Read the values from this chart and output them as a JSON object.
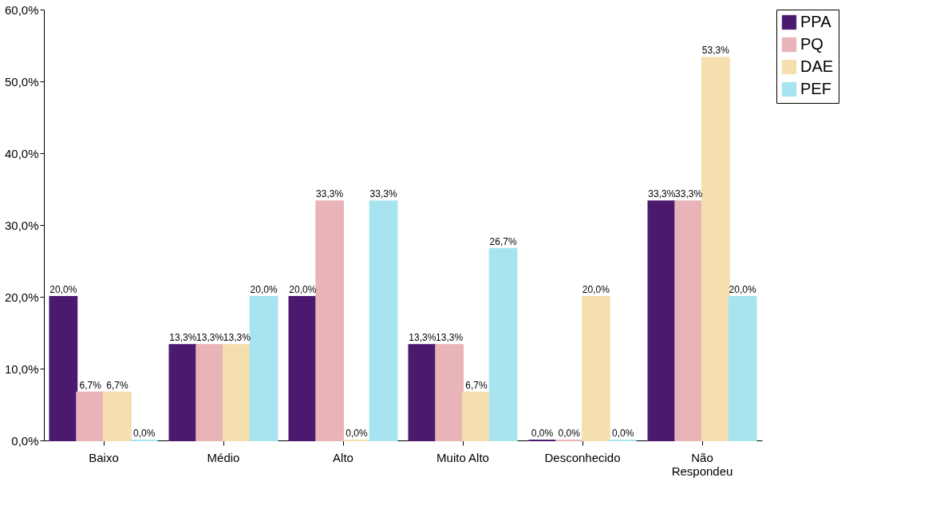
{
  "chart_data": {
    "type": "bar",
    "categories": [
      "Baixo",
      "Médio",
      "Alto",
      "Muito Alto",
      "Desconhecido",
      "Não Respondeu"
    ],
    "series": [
      {
        "name": "PPA",
        "color": "#4b1a6e",
        "values": [
          20.0,
          13.3,
          20.0,
          13.3,
          0.0,
          33.3
        ],
        "value_labels": [
          "20,0%",
          "13,3%",
          "20,0%",
          "13,3%",
          "0,0%",
          "33,3%"
        ]
      },
      {
        "name": "PQ",
        "color": "#e8b4b8",
        "values": [
          6.7,
          13.3,
          33.3,
          13.3,
          0.0,
          33.3
        ],
        "value_labels": [
          "6,7%",
          "13,3%",
          "33,3%",
          "13,3%",
          "0,0%",
          "33,3%"
        ]
      },
      {
        "name": "DAE",
        "color": "#f5dfae",
        "values": [
          6.7,
          13.3,
          0.0,
          6.7,
          20.0,
          53.3
        ],
        "value_labels": [
          "6,7%",
          "13,3%",
          "0,0%",
          "6,7%",
          "20,0%",
          "53,3%"
        ]
      },
      {
        "name": "PEF",
        "color": "#a8e4f0",
        "values": [
          0.0,
          20.0,
          33.3,
          26.7,
          0.0,
          20.0
        ],
        "value_labels": [
          "0,0%",
          "20,0%",
          "33,3%",
          "26,7%",
          "0,0%",
          "20,0%"
        ]
      }
    ],
    "ylim": [
      0,
      60
    ],
    "yticks": [
      {
        "value": 0,
        "label": "0,0%"
      },
      {
        "value": 10,
        "label": "10,0%"
      },
      {
        "value": 20,
        "label": "20,0%"
      },
      {
        "value": 30,
        "label": "30,0%"
      },
      {
        "value": 40,
        "label": "40,0%"
      },
      {
        "value": 50,
        "label": "50,0%"
      },
      {
        "value": 60,
        "label": "60,0%"
      }
    ],
    "grid": false,
    "legend": "top right"
  }
}
